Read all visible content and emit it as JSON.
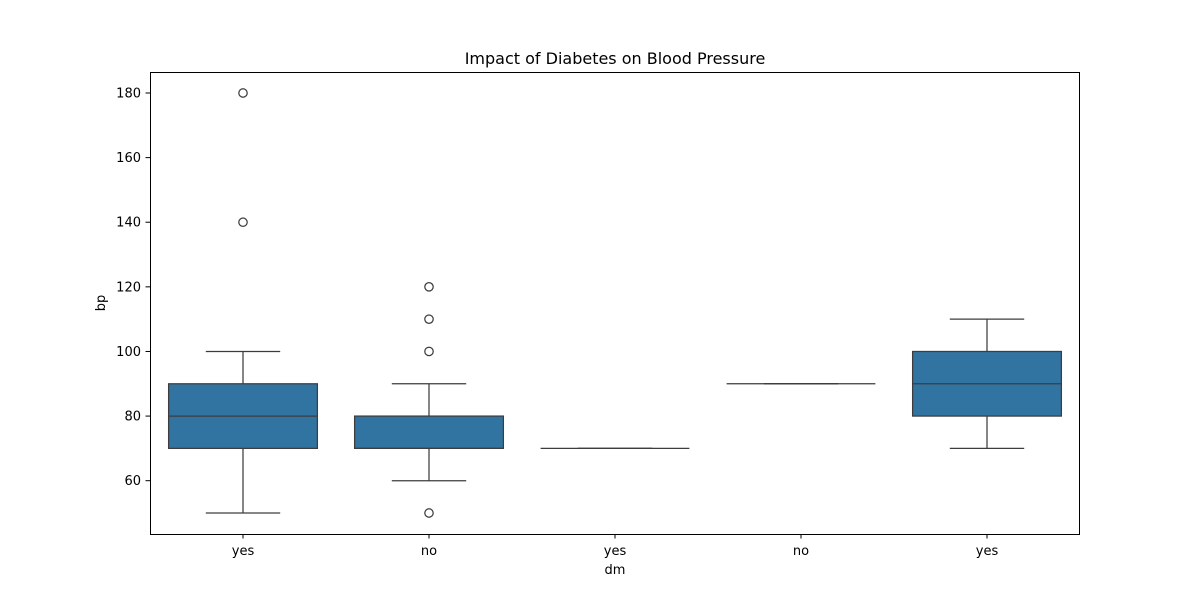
{
  "chart_data": {
    "type": "box",
    "title": "Impact of Diabetes on Blood Pressure",
    "xlabel": "dm",
    "ylabel": "bp",
    "ylim": [
      43.5,
      186.5
    ],
    "yticks": [
      60,
      80,
      100,
      120,
      140,
      160,
      180
    ],
    "grid": false,
    "legend": false,
    "box_color": "#3274a1",
    "line_color": "#3d3d3d",
    "categories": [
      "yes",
      "no",
      " yes",
      "\tno",
      "\tyes"
    ],
    "boxes": [
      {
        "category": "yes",
        "whisker_low": 50,
        "q1": 70,
        "median": 80,
        "q3": 90,
        "whisker_high": 100,
        "outliers": [
          140,
          180
        ]
      },
      {
        "category": "no",
        "whisker_low": 60,
        "q1": 70,
        "median": 70,
        "q3": 80,
        "whisker_high": 90,
        "outliers": [
          50,
          100,
          110,
          120
        ]
      },
      {
        "category": " yes",
        "whisker_low": 70,
        "q1": 70,
        "median": 70,
        "q3": 70,
        "whisker_high": 70,
        "outliers": []
      },
      {
        "category": "\tno",
        "whisker_low": 90,
        "q1": 90,
        "median": 90,
        "q3": 90,
        "whisker_high": 90,
        "outliers": []
      },
      {
        "category": "\tyes",
        "whisker_low": 70,
        "q1": 80,
        "median": 90,
        "q3": 100,
        "whisker_high": 110,
        "outliers": []
      }
    ]
  }
}
